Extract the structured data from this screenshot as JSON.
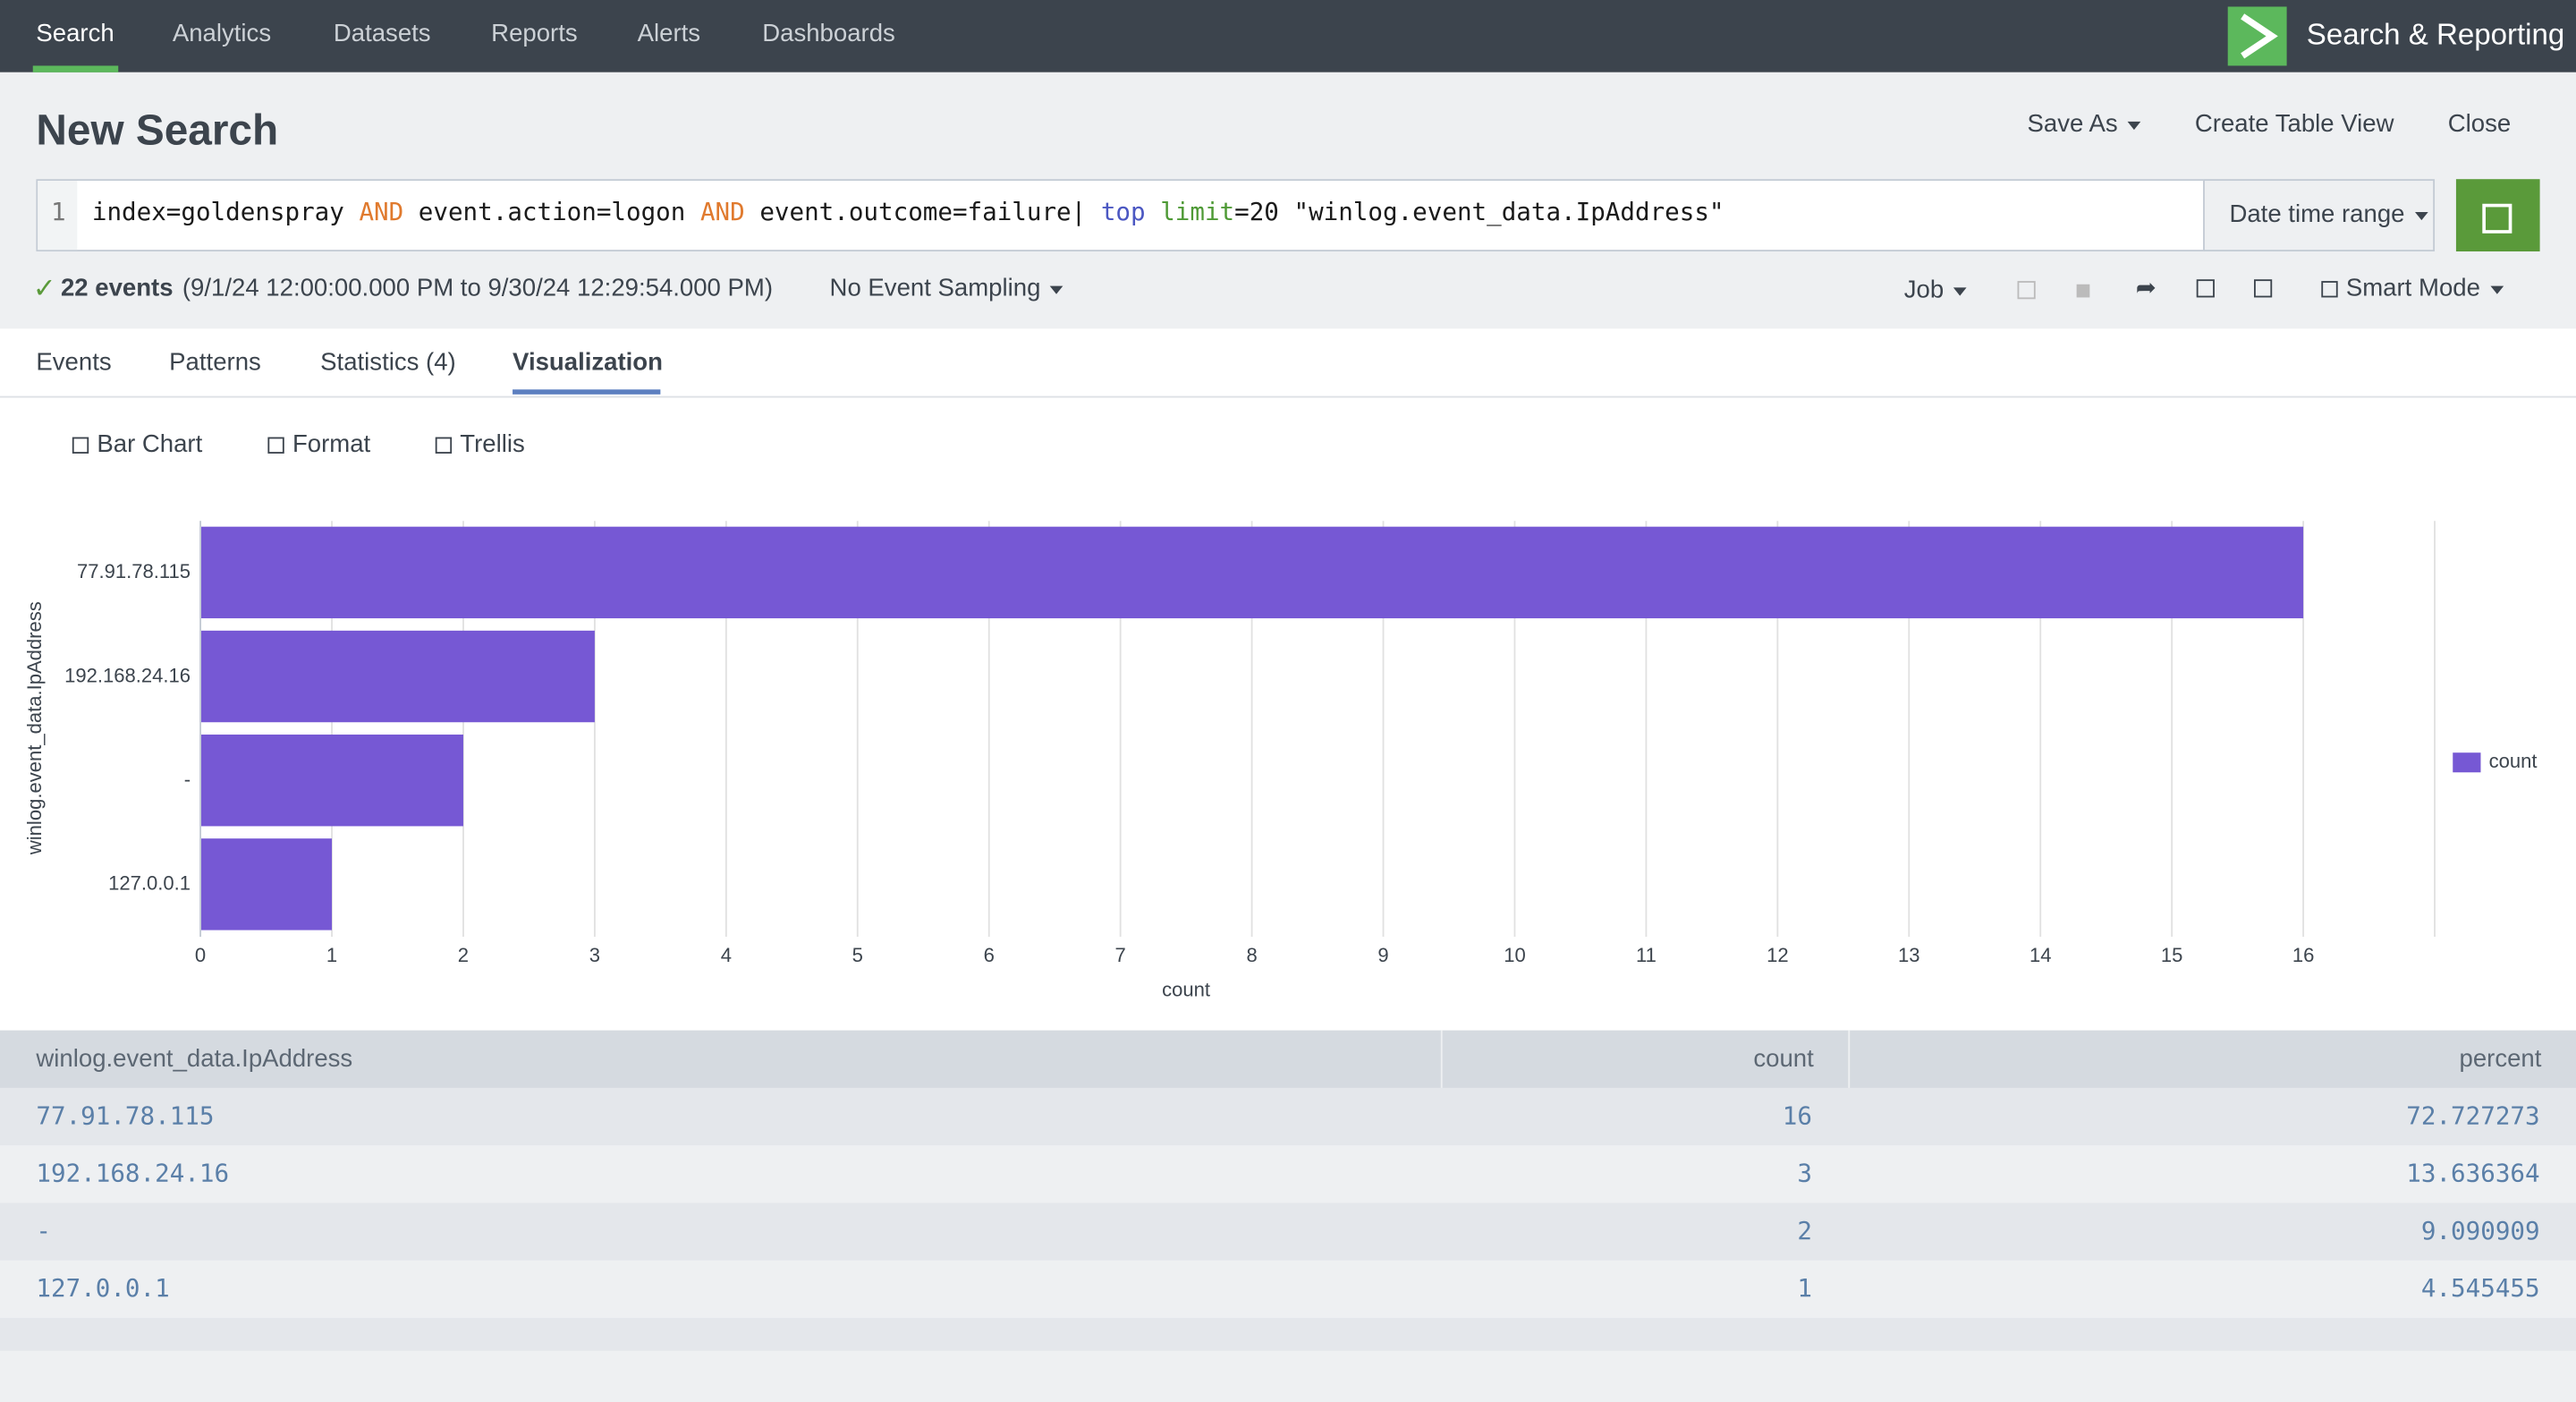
{
  "nav": {
    "items": [
      "Search",
      "Analytics",
      "Datasets",
      "Reports",
      "Alerts",
      "Dashboards"
    ],
    "active": 0,
    "app": "Search & Reporting"
  },
  "header": {
    "title": "New Search",
    "actions": [
      "Save As",
      "Create Table View",
      "Close"
    ]
  },
  "search": {
    "line_number": 1,
    "query": [
      {
        "text": "index=goldenspray ",
        "color": "#1a1a1a"
      },
      {
        "text": "AND",
        "color": "#e07a2e"
      },
      {
        "text": " event.action=logon ",
        "color": "#1a1a1a"
      },
      {
        "text": "AND",
        "color": "#e07a2e"
      },
      {
        "text": " event.outcome=failure| ",
        "color": "#1a1a1a"
      },
      {
        "text": "top",
        "color": "#4b57c2"
      },
      {
        "text": " limit",
        "color": "#4f9a36"
      },
      {
        "text": "=20 \"winlog.event_data.IpAddress\"",
        "color": "#1a1a1a"
      }
    ],
    "time_range": "Date time range"
  },
  "status": {
    "count": "22 events",
    "range": "(9/1/24 12:00:00.000 PM to 9/30/24 12:29:54.000 PM)",
    "sampling": "No Event Sampling",
    "job": "Job",
    "mode": "Smart Mode"
  },
  "tabs": {
    "items": [
      "Events",
      "Patterns",
      "Statistics (4)",
      "Visualization"
    ],
    "active": 3
  },
  "viz_options": [
    "Bar Chart",
    "Format",
    "Trellis"
  ],
  "chart_data": {
    "type": "hbar",
    "categories": [
      "77.91.78.115",
      "192.168.24.16",
      "-",
      "127.0.0.1"
    ],
    "series": [
      {
        "name": "count",
        "color": "#7658d4",
        "values": [
          16,
          3,
          2,
          1
        ]
      }
    ],
    "x_label": "count",
    "y_label": "winlog.event_data.IpAddress",
    "xlim": [
      0,
      17
    ],
    "xticks": [
      0,
      1,
      2,
      3,
      4,
      5,
      6,
      7,
      8,
      9,
      10,
      11,
      12,
      13,
      14,
      15,
      16
    ],
    "grid": true,
    "legend": "right"
  },
  "table": {
    "columns": [
      "winlog.event_data.IpAddress",
      "count",
      "percent"
    ],
    "rows": [
      [
        "77.91.78.115",
        16,
        72.727273
      ],
      [
        "192.168.24.16",
        3,
        13.636364
      ],
      [
        "-",
        2,
        9.090909
      ],
      [
        "127.0.0.1",
        1,
        4.545455
      ]
    ]
  }
}
